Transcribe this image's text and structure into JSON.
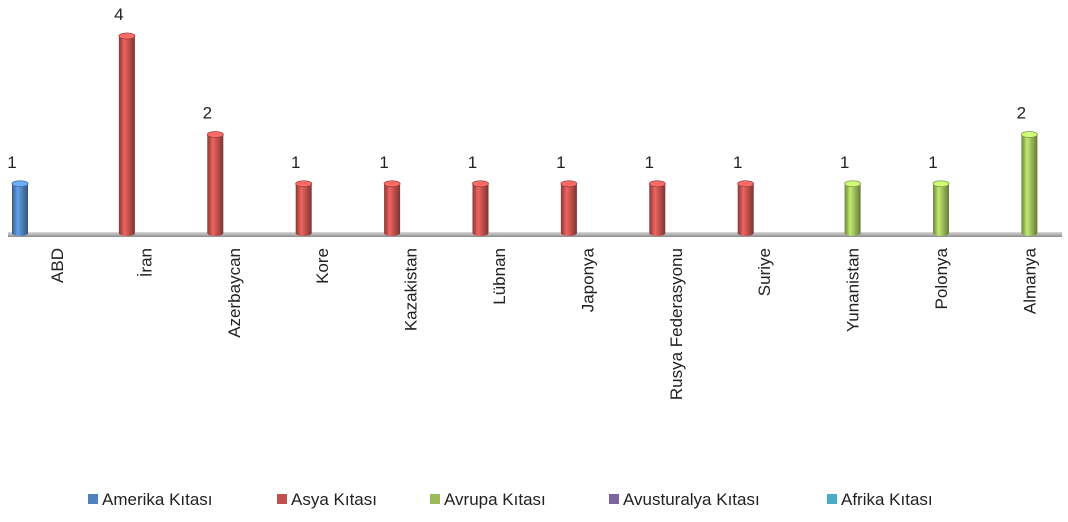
{
  "chart_data": {
    "type": "bar",
    "categories": [
      "ABD",
      "İran",
      "Azerbaycan",
      "Kore",
      "Kazakistan",
      "Lübnan",
      "Japonya",
      "Rusya Federasyonu",
      "Suriye",
      "Yunanistan",
      "Polonya",
      "Almanya"
    ],
    "series": [
      {
        "name": "Amerika Kıtası",
        "color": "#4f81bd",
        "values": [
          1,
          null,
          null,
          null,
          null,
          null,
          null,
          null,
          null,
          null,
          null,
          null
        ]
      },
      {
        "name": "Asya Kıtası",
        "color": "#c0504d",
        "values": [
          null,
          4,
          2,
          1,
          1,
          1,
          1,
          1,
          1,
          null,
          null,
          null
        ]
      },
      {
        "name": "Avrupa Kıtası",
        "color": "#9bbb59",
        "values": [
          null,
          null,
          null,
          null,
          null,
          null,
          null,
          null,
          null,
          1,
          1,
          2
        ]
      },
      {
        "name": "Avusturalya Kıtası",
        "color": "#8064a2",
        "values": [
          null,
          null,
          null,
          null,
          null,
          null,
          null,
          null,
          null,
          null,
          null,
          null
        ]
      },
      {
        "name": "Afrika Kıtası",
        "color": "#4bacc6",
        "values": [
          null,
          null,
          null,
          null,
          null,
          null,
          null,
          null,
          null,
          null,
          null,
          null
        ]
      }
    ],
    "legend": "bottom"
  }
}
